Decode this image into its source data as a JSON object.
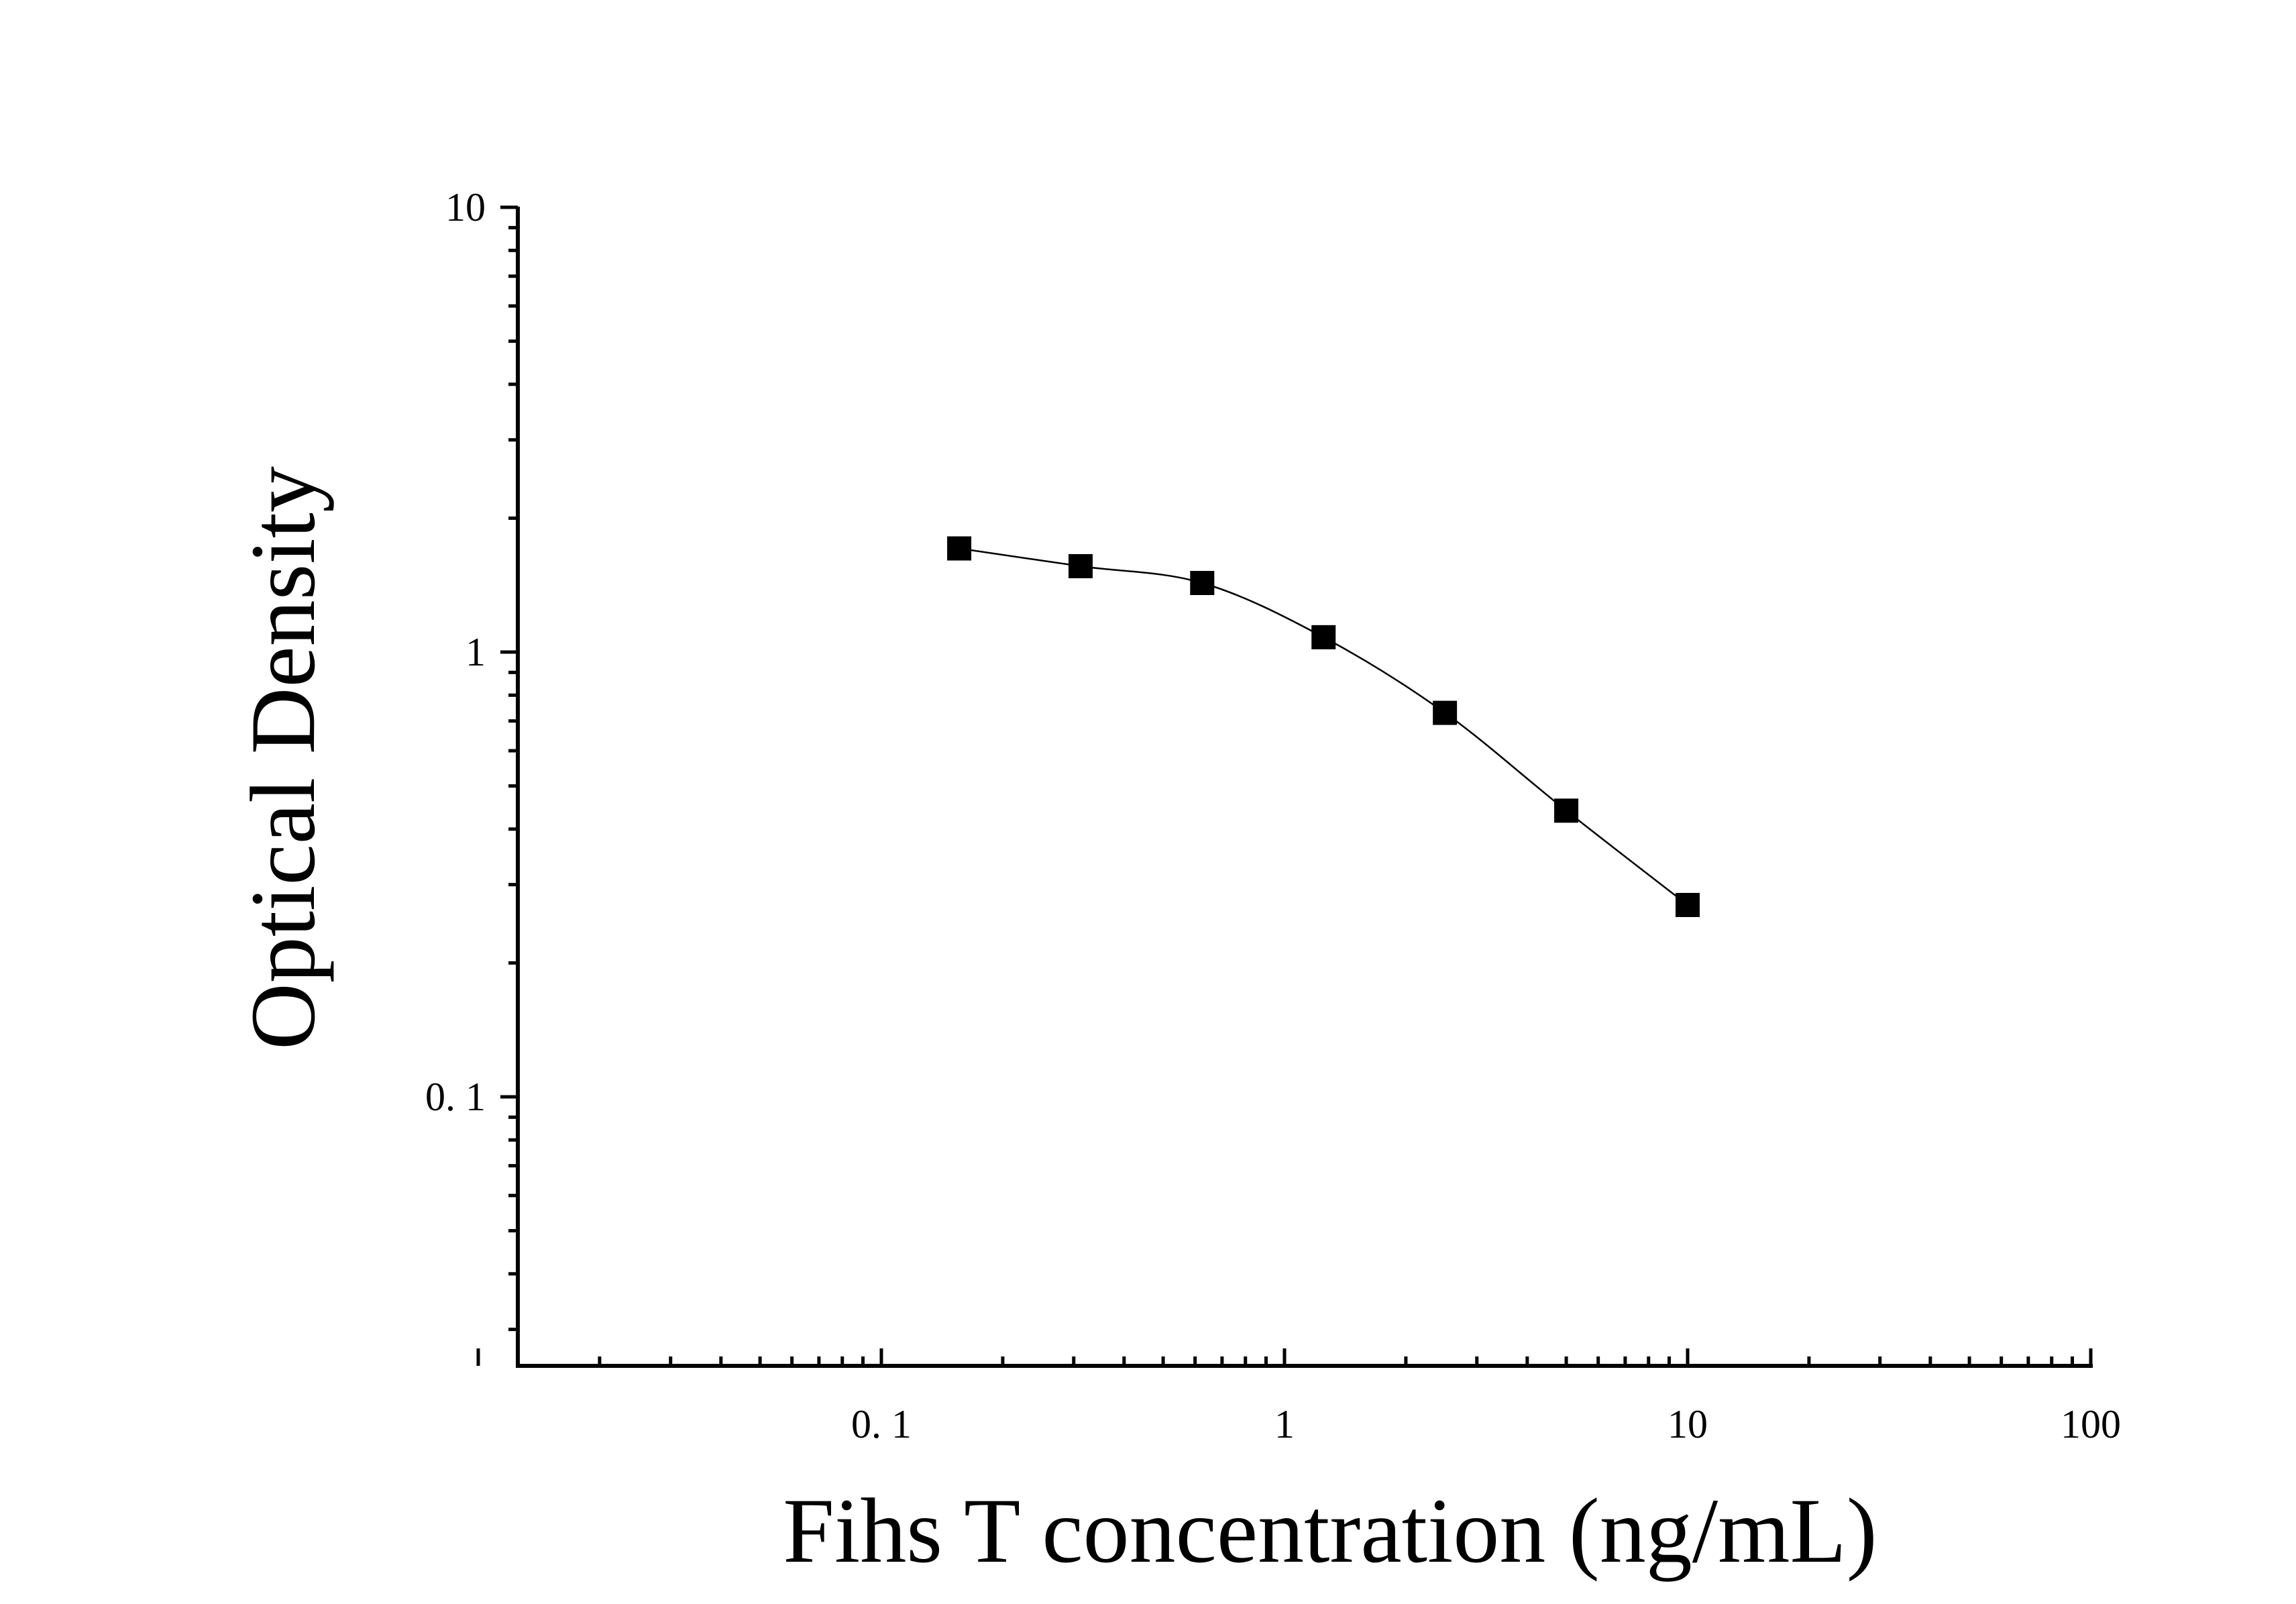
{
  "chart_data": {
    "type": "scatter",
    "title": "",
    "xlabel": "Fihs T concentration (ng/mL)",
    "ylabel": "Optical Density",
    "x_scale": "log",
    "y_scale": "log",
    "xlim": [
      0.01,
      100
    ],
    "ylim": [
      0.025,
      10
    ],
    "x_tick_labels": [
      "0. 1",
      "1",
      "10",
      "100"
    ],
    "x_tick_values": [
      0.1,
      1,
      10,
      100
    ],
    "y_tick_labels": [
      "0. 1",
      "1",
      "10"
    ],
    "y_tick_values": [
      0.1,
      1,
      10
    ],
    "grid": false,
    "legend": "none",
    "marker": "filled-square",
    "fit_curve": true,
    "series": [
      {
        "x": [
          0.156,
          0.312,
          0.625,
          1.25,
          2.5,
          5,
          10
        ],
        "y": [
          1.71,
          1.56,
          1.43,
          1.08,
          0.73,
          0.44,
          0.27
        ]
      }
    ],
    "colors": {
      "marks": "#000000",
      "axes": "#000000",
      "background": "#ffffff"
    }
  }
}
